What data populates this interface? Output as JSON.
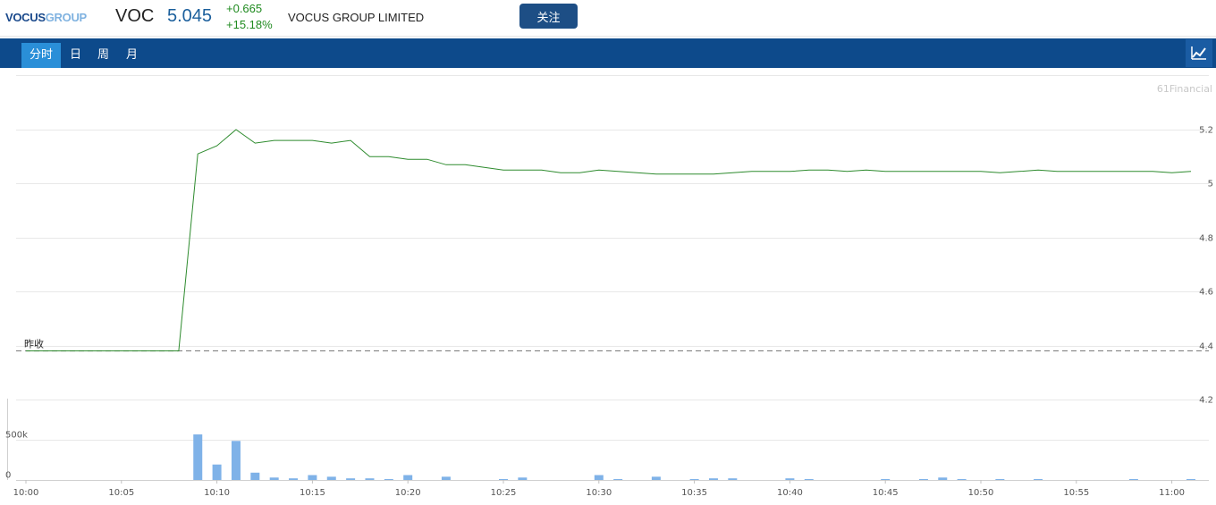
{
  "header": {
    "logo_part1": "VOCUS",
    "logo_part2": "GROUP",
    "ticker": "VOC",
    "price": "5.045",
    "change_abs": "+0.665",
    "change_pct": "+15.18%",
    "company_name": "VOCUS GROUP LIMITED",
    "follow_label": "关注"
  },
  "tabs": [
    {
      "label": "分时",
      "active": true
    },
    {
      "label": "日",
      "active": false
    },
    {
      "label": "周",
      "active": false
    },
    {
      "label": "月",
      "active": false
    }
  ],
  "chart_toggle_icon": "line-chart-icon",
  "colors": {
    "price_line": "#2e8b2e",
    "volume_bar": "#7fb2e8",
    "tabbar": "#0d4a8b",
    "active_tab": "#2a8fd8",
    "prev_close_line": "#777777"
  },
  "chart_data": {
    "type": "line",
    "watermark": "61Financial",
    "prev_close_label": "昨收",
    "prev_close": 4.38,
    "price": {
      "ylim": [
        4.2,
        5.2
      ],
      "yticks": [
        5.2,
        5,
        4.8,
        4.6,
        4.4,
        4.2
      ],
      "ytick_labels": [
        "5.2",
        "5",
        "4.8",
        "4.6",
        "4.4",
        "4.2"
      ],
      "x": [
        "10:00",
        "10:01",
        "10:02",
        "10:03",
        "10:04",
        "10:05",
        "10:06",
        "10:07",
        "10:08",
        "10:09",
        "10:10",
        "10:11",
        "10:12",
        "10:13",
        "10:14",
        "10:15",
        "10:16",
        "10:17",
        "10:18",
        "10:19",
        "10:20",
        "10:21",
        "10:22",
        "10:23",
        "10:24",
        "10:25",
        "10:26",
        "10:27",
        "10:28",
        "10:29",
        "10:30",
        "10:31",
        "10:32",
        "10:33",
        "10:34",
        "10:35",
        "10:36",
        "10:37",
        "10:38",
        "10:39",
        "10:40",
        "10:41",
        "10:42",
        "10:43",
        "10:44",
        "10:45",
        "10:46",
        "10:47",
        "10:48",
        "10:49",
        "10:50",
        "10:51",
        "10:52",
        "10:53",
        "10:54",
        "10:55",
        "10:56",
        "10:57",
        "10:58",
        "10:59",
        "11:00",
        "11:01"
      ],
      "values": [
        4.38,
        4.38,
        4.38,
        4.38,
        4.38,
        4.38,
        4.38,
        4.38,
        4.38,
        5.11,
        5.14,
        5.2,
        5.15,
        5.16,
        5.16,
        5.16,
        5.15,
        5.16,
        5.1,
        5.1,
        5.09,
        5.09,
        5.07,
        5.07,
        5.06,
        5.05,
        5.05,
        5.05,
        5.04,
        5.04,
        5.05,
        5.045,
        5.04,
        5.035,
        5.035,
        5.035,
        5.035,
        5.04,
        5.045,
        5.045,
        5.045,
        5.05,
        5.05,
        5.045,
        5.05,
        5.045,
        5.045,
        5.045,
        5.045,
        5.045,
        5.045,
        5.04,
        5.045,
        5.05,
        5.045,
        5.045,
        5.045,
        5.045,
        5.045,
        5.045,
        5.04,
        5.045
      ]
    },
    "volume": {
      "ytick_labels": [
        "500k",
        "0"
      ],
      "yticks": [
        500000,
        0
      ],
      "ylim": [
        0,
        1000000
      ],
      "values": [
        0,
        0,
        0,
        0,
        0,
        0,
        0,
        0,
        0,
        560000,
        190000,
        480000,
        90000,
        30000,
        20000,
        60000,
        40000,
        20000,
        20000,
        10000,
        60000,
        0,
        40000,
        0,
        0,
        10000,
        30000,
        0,
        0,
        0,
        60000,
        10000,
        0,
        40000,
        0,
        10000,
        20000,
        20000,
        0,
        0,
        20000,
        10000,
        0,
        0,
        0,
        10000,
        0,
        10000,
        30000,
        10000,
        0,
        10000,
        0,
        10000,
        0,
        0,
        0,
        0,
        10000,
        0,
        0,
        10000
      ]
    },
    "xtick_labels": [
      "10:00",
      "10:05",
      "10:10",
      "10:15",
      "10:20",
      "10:25",
      "10:30",
      "10:35",
      "10:40",
      "10:45",
      "10:50",
      "10:55",
      "11:00"
    ]
  }
}
